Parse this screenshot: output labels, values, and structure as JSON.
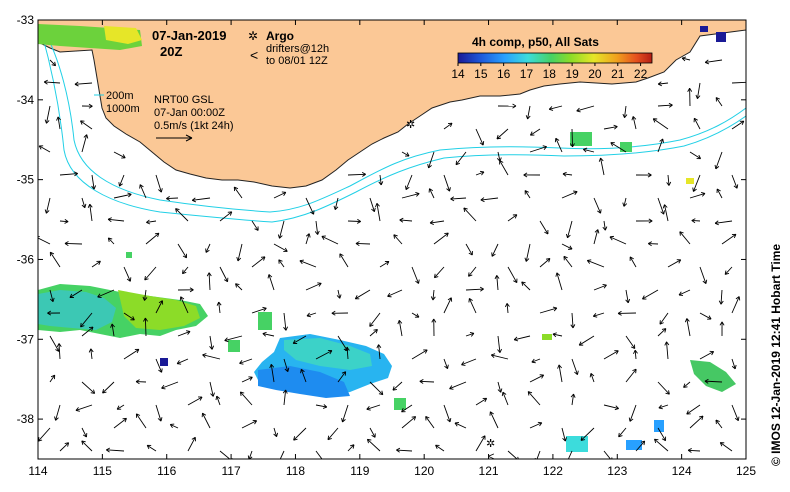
{
  "map": {
    "date": "07-Jan-2019",
    "time": "20Z",
    "legend": {
      "argo_label": "Argo",
      "drifters_line1": "drifters@12h",
      "drifters_line2": "to 08/01 12Z",
      "argo_symbol": "✲",
      "drifter_symbol": "<"
    },
    "colorbar": {
      "title": "4h comp, p50, All Sats",
      "ticks": [
        "14",
        "15",
        "16",
        "17",
        "18",
        "19",
        "20",
        "21",
        "22"
      ],
      "min": 14,
      "max": 22.5,
      "colors": [
        "#1a1a96",
        "#1e5adc",
        "#28a0ff",
        "#3cdcdc",
        "#46d264",
        "#8cdc28",
        "#e6e628",
        "#f0a01e",
        "#e6501e",
        "#b41e14"
      ]
    },
    "contours": {
      "shallow": "200m",
      "deep": "1000m"
    },
    "current_info": {
      "line1": "NRT00 GSL",
      "line2": "07-Jan 00:00Z",
      "line3": "0.5m/s (1kt 24h)"
    },
    "axes": {
      "lon_ticks": [
        "114",
        "115",
        "116",
        "117",
        "118",
        "119",
        "120",
        "121",
        "122",
        "123",
        "124",
        "125"
      ],
      "lat_ticks": [
        "-33",
        "-34",
        "-35",
        "-36",
        "-37",
        "-38"
      ],
      "lon_range": [
        114,
        125
      ],
      "lat_range": [
        -33,
        -38.5
      ]
    },
    "side_label": "© IMOS 12-Jan-2019 12:41 Hobart Time",
    "colors": {
      "land": "#fbc896",
      "coast": "#222222",
      "contour": "#22d0e6",
      "argo": "#e020e0",
      "vector": "#000000"
    }
  }
}
